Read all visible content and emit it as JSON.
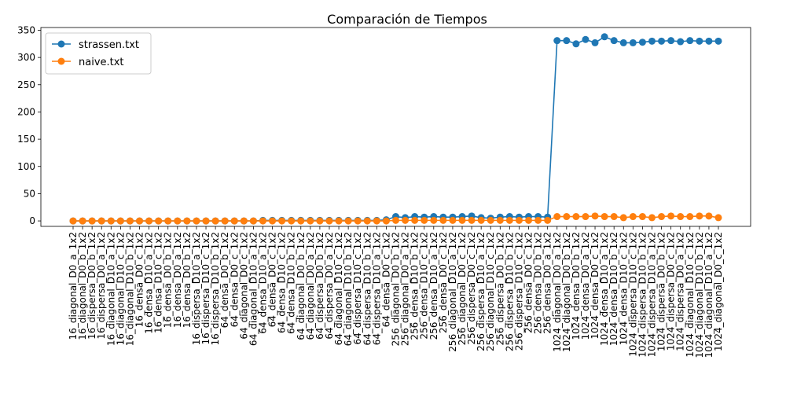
{
  "chart_data": {
    "type": "line",
    "title": "Comparación de Tiempos",
    "xlabel": "",
    "ylabel": "",
    "ylim": [
      -10,
      355
    ],
    "yticks": [
      0,
      50,
      100,
      150,
      200,
      250,
      300,
      350
    ],
    "grid": false,
    "legend": "top-left",
    "categories": [
      "16_diagonal_D0_a_1x2",
      "16_diagonal_D0_b_1x2",
      "16_dispersa_D0_b_1x2",
      "16_dispersa_D0_a_1x2",
      "16_diagonal_D10_a_1x2",
      "16_diagonal_D10_c_1x2",
      "16_diagonal_D10_b_1x2",
      "16_densa_D0_c_1x2",
      "16_densa_D10_a_1x2",
      "16_densa_D10_c_1x2",
      "16_densa_D0_b_1x2",
      "16_densa_D0_a_1x2",
      "16_densa_D0_b_1x2",
      "16_dispersa_D10_a_1x2",
      "16_dispersa_D10_c_1x2",
      "16_dispersa_D10_b_1x2",
      "64_densa_D0_b_1x2",
      "64_densa_D0_c_1x2",
      "64_diagonal_D0_c_1x2",
      "64_diagonal_D10_a_1x2",
      "64_densa_D10_a_1x2",
      "64_densa_D0_c_1x2",
      "64_densa_D10_c_1x2",
      "64_densa_D10_b_1x2",
      "64_diagonal_D0_b_1x2",
      "64_diagonal_D0_a_1x2",
      "64_dispersa_D0_b_1x2",
      "64_dispersa_D0_a_1x2",
      "64_diagonal_D10_c_1x2",
      "64_diagonal_D10_b_1x2",
      "64_dispersa_D10_c_1x2",
      "64_dispersa_D10_b_1x2",
      "64_dispersa_D10_a_1x2",
      "64_densa_D0_c_1x2",
      "256_diagonal_D0_b_1x2",
      "256_diagonal_D0_a_1x2",
      "256_densa_D10_b_1x2",
      "256_densa_D10_c_1x2",
      "256_densa_D10_a_1x2",
      "256_densa_D0_c_1x2",
      "256_diagonal_D10_a_1x2",
      "256_diagonal_D0_c_1x2",
      "256_dispersa_D0_c_1x2",
      "256_dispersa_D10_a_1x2",
      "256_diagonal_D10_c_1x2",
      "256_dispersa_D0_b_1x2",
      "256_dispersa_D10_b_1x2",
      "256_dispersa_D10_c_1x2",
      "256_densa_D0_c_1x2",
      "256_densa_D0_b_1x2",
      "256_densa_D0_a_1x2",
      "1024_diagonal_D0_a_1x2",
      "1024_diagonal_D0_b_1x2",
      "1024_densa_D0_b_1x2",
      "1024_densa_D0_a_1x2",
      "1024_densa_D0_c_1x2",
      "1024_densa_D10_a_1x2",
      "1024_densa_D10_b_1x2",
      "1024_densa_D10_c_1x2",
      "1024_dispersa_D10_c_1x2",
      "1024_dispersa_D10_b_1x2",
      "1024_dispersa_D10_a_1x2",
      "1024_dispersa_D0_b_1x2",
      "1024_dispersa_D0_c_1x2",
      "1024_dispersa_D0_a_1x2",
      "1024_diagonal_D10_c_1x2",
      "1024_diagonal_D10_b_1x2",
      "1024_diagonal_D10_a_1x2",
      "1024_diagonal_D0_c_1x2"
    ],
    "series": [
      {
        "name": "strassen.txt",
        "color": "#1f77b4",
        "values": [
          0,
          0,
          0,
          0,
          0,
          0,
          0,
          0,
          0,
          0,
          0,
          0,
          0,
          0,
          0,
          0,
          0,
          0,
          0,
          0,
          1,
          1,
          1,
          1,
          1,
          1,
          1,
          1,
          1,
          1,
          1,
          1,
          1,
          2,
          8,
          6,
          8,
          7,
          8,
          7,
          7,
          8,
          9,
          6,
          5,
          7,
          8,
          7,
          8,
          8,
          7,
          331,
          331,
          325,
          333,
          327,
          338,
          331,
          327,
          327,
          328,
          330,
          330,
          331,
          329,
          331,
          330,
          330,
          330
        ]
      },
      {
        "name": "naive.txt",
        "color": "#ff7f0e",
        "values": [
          0,
          0,
          0,
          0,
          0,
          0,
          0,
          0,
          0,
          0,
          0,
          0,
          0,
          0,
          0,
          0,
          0,
          0,
          0,
          0,
          0,
          0,
          0,
          0,
          0,
          0,
          0,
          0,
          0,
          0,
          0,
          0,
          0,
          0,
          1,
          1,
          1,
          1,
          1,
          1,
          1,
          1,
          1,
          1,
          1,
          1,
          1,
          1,
          1,
          1,
          1,
          8,
          8,
          8,
          8,
          9,
          8,
          8,
          6,
          8,
          8,
          6,
          8,
          9,
          8,
          8,
          9,
          9,
          6
        ]
      }
    ]
  }
}
